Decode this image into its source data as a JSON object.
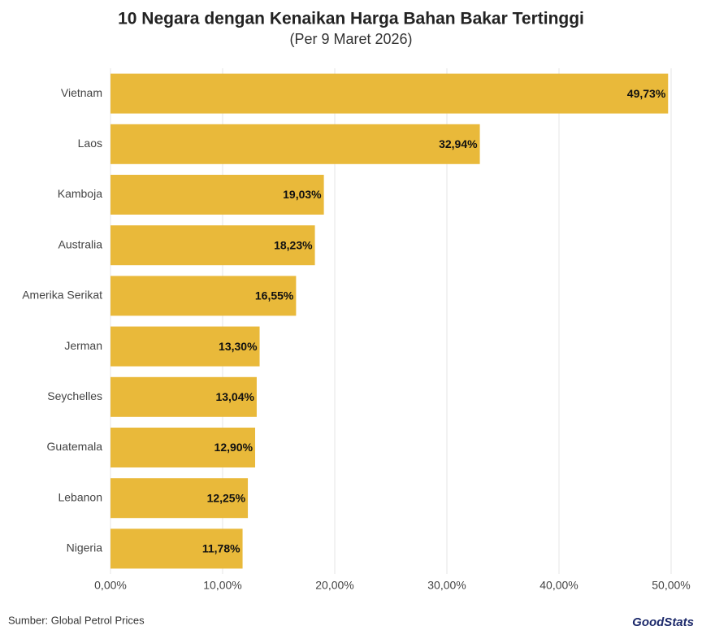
{
  "chart_data": {
    "type": "barh",
    "title": "10 Negara dengan Kenaikan Harga Bahan Bakar Tertinggi",
    "subtitle": "(Per 9 Maret 2026)",
    "categories": [
      "Vietnam",
      "Laos",
      "Kamboja",
      "Australia",
      "Amerika Serikat",
      "Jerman",
      "Seychelles",
      "Guatemala",
      "Lebanon",
      "Nigeria"
    ],
    "values": [
      49.73,
      32.94,
      19.03,
      18.23,
      16.55,
      13.3,
      13.04,
      12.9,
      12.25,
      11.78
    ],
    "value_labels": [
      "49,73%",
      "32,94%",
      "19,03%",
      "18,23%",
      "16,55%",
      "13,30%",
      "13,04%",
      "12,90%",
      "12,25%",
      "11,78%"
    ],
    "color": "#e9b93a",
    "xlim": [
      0,
      50
    ],
    "xticks": [
      {
        "value": 0,
        "label": "0,00%"
      },
      {
        "value": 10,
        "label": "10,00%"
      },
      {
        "value": 20,
        "label": "20,00%"
      },
      {
        "value": 30,
        "label": "30,00%"
      },
      {
        "value": 40,
        "label": "40,00%"
      },
      {
        "value": 50,
        "label": "50,00%"
      }
    ],
    "grid": true,
    "source": "Sumber: Global Petrol Prices",
    "logo": "GoodStats"
  }
}
